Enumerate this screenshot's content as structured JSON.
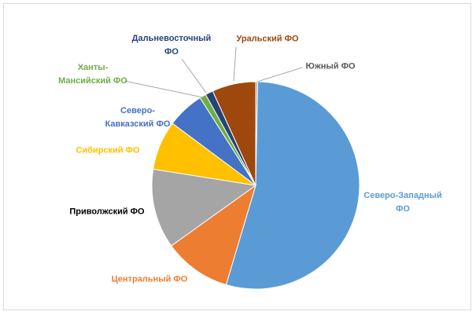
{
  "chart_data": {
    "type": "pie",
    "categories": [
      "Южный ФО",
      "Северо-Западный ФО",
      "Центральный ФО",
      "Приволжский ФО",
      "Сибирский ФО",
      "Северо-Кавказский ФО",
      "Ханты-Мансийский ФО",
      "Дальневосточный ФО",
      "Уральский ФО"
    ],
    "values": [
      0.3,
      54.3,
      10.5,
      12.4,
      7.7,
      5.8,
      1.0,
      1.2,
      6.8
    ],
    "colors": [
      "#a5a5a5",
      "#5b9bd5",
      "#ed7d31",
      "#a5a5a5",
      "#ffc000",
      "#4472c4",
      "#70ad47",
      "#264478",
      "#9e480e"
    ],
    "label_colors": [
      "#595959",
      "#5b9bd5",
      "#ed7d31",
      "#000000",
      "#ffc000",
      "#4472c4",
      "#70ad47",
      "#264478",
      "#9e480e"
    ]
  }
}
